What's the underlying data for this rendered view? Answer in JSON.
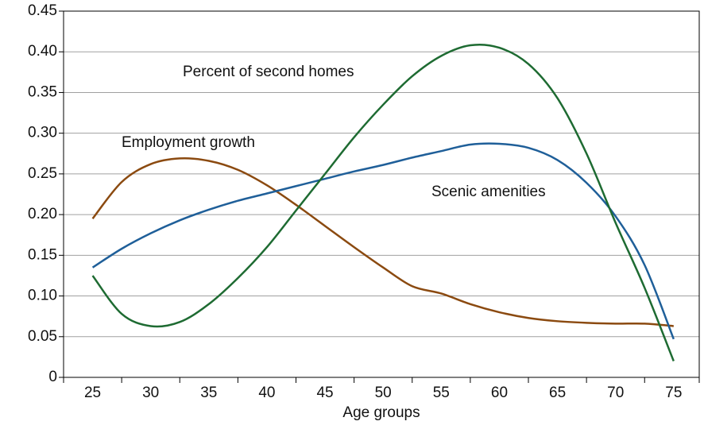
{
  "chart_data": {
    "type": "line",
    "x_label": "Age groups",
    "x": [
      25,
      27.5,
      30,
      32.5,
      35,
      37.5,
      40,
      42.5,
      45,
      47.5,
      50,
      52.5,
      55,
      57.5,
      60,
      62.5,
      65,
      67.5,
      70,
      72.5,
      75
    ],
    "xlim": [
      22.5,
      77.2
    ],
    "xticks": [
      25,
      30,
      35,
      40,
      45,
      50,
      55,
      60,
      65,
      70,
      75
    ],
    "ylim": [
      0,
      0.45
    ],
    "yticks": [
      0,
      0.05,
      {
        "value": 0.1,
        "label": "0.10"
      },
      0.15,
      {
        "value": 0.2,
        "label": "0.20"
      },
      0.25,
      {
        "value": 0.3,
        "label": "0.30"
      },
      0.35,
      {
        "value": 0.4,
        "label": "0.40"
      },
      0.45
    ],
    "grid": true,
    "series": [
      {
        "name": "Employment growth",
        "color": "#8b4a10",
        "values": [
          0.195,
          0.24,
          0.262,
          0.269,
          0.266,
          0.255,
          0.236,
          0.212,
          0.186,
          0.16,
          0.135,
          0.112,
          0.103,
          0.09,
          0.08,
          0.073,
          0.069,
          0.067,
          0.066,
          0.066,
          0.063
        ]
      },
      {
        "name": "Scenic amenities",
        "color": "#1f5f99",
        "values": [
          0.135,
          0.158,
          0.177,
          0.193,
          0.206,
          0.217,
          0.226,
          0.235,
          0.244,
          0.253,
          0.261,
          0.27,
          0.278,
          0.286,
          0.287,
          0.282,
          0.267,
          0.239,
          0.198,
          0.138,
          0.047
        ]
      },
      {
        "name": "Percent of second homes",
        "color": "#1e6b32",
        "values": [
          0.125,
          0.078,
          0.063,
          0.068,
          0.09,
          0.122,
          0.16,
          0.205,
          0.25,
          0.295,
          0.335,
          0.37,
          0.395,
          0.408,
          0.405,
          0.385,
          0.343,
          0.275,
          0.19,
          0.11,
          0.02
        ]
      }
    ]
  }
}
